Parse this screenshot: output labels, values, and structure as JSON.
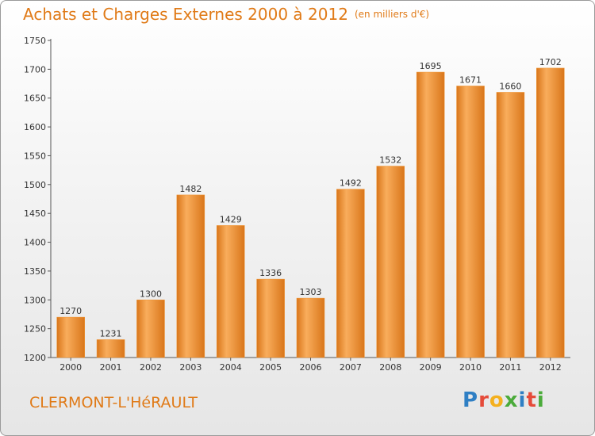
{
  "chart_data": {
    "type": "bar",
    "title": "Achats et Charges Externes 2000 à 2012",
    "subtitle": "(en milliers d'€)",
    "xlabel": "",
    "ylabel": "",
    "categories": [
      "2000",
      "2001",
      "2002",
      "2003",
      "2004",
      "2005",
      "2006",
      "2007",
      "2008",
      "2009",
      "2010",
      "2011",
      "2012"
    ],
    "values": [
      1270,
      1231,
      1300,
      1482,
      1429,
      1336,
      1303,
      1492,
      1532,
      1695,
      1671,
      1660,
      1702
    ],
    "ylim": [
      1200,
      1750
    ],
    "yticks": [
      1200,
      1250,
      1300,
      1350,
      1400,
      1450,
      1500,
      1550,
      1600,
      1650,
      1700,
      1750
    ],
    "grid": false,
    "legend": "none",
    "bar_color": "#f0932f",
    "bar_highlight": "#f9ad5c",
    "bar_shadow": "#d9761a"
  },
  "footer": {
    "commune": "CLERMONT-L'HéRAULT",
    "logo_letters": [
      {
        "ch": "P",
        "color": "#2f7fc4"
      },
      {
        "ch": "r",
        "color": "#e54b3a"
      },
      {
        "ch": "o",
        "color": "#f4b01e"
      },
      {
        "ch": "x",
        "color": "#4bab3b"
      },
      {
        "ch": "i",
        "color": "#2f7fc4"
      },
      {
        "ch": "t",
        "color": "#e54b3a"
      },
      {
        "ch": "i",
        "color": "#4bab3b"
      }
    ]
  }
}
